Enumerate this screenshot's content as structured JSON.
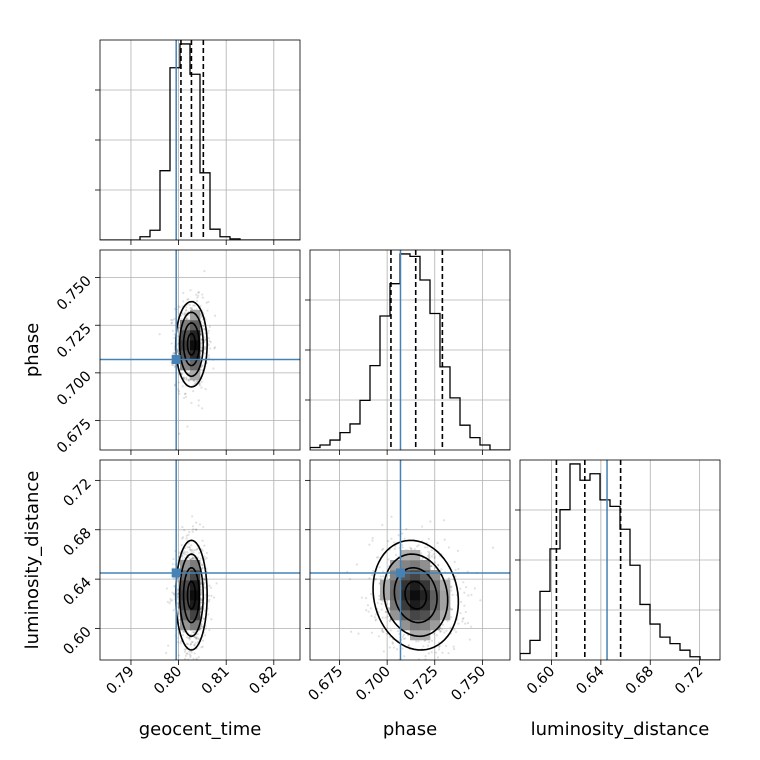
{
  "chart_data": {
    "type": "corner",
    "parameters": [
      "geocent_time",
      "phase",
      "luminosity_distance"
    ],
    "labels": {
      "geocent_time": "geocent_time",
      "phase": "phase",
      "luminosity_distance": "luminosity_distance"
    },
    "ranges": {
      "geocent_time": [
        0.7835,
        0.8255
      ],
      "phase": [
        0.6595,
        0.7645
      ],
      "luminosity_distance": [
        0.5745,
        0.7365
      ]
    },
    "ticks": {
      "geocent_time": [
        0.79,
        0.8,
        0.81,
        0.82
      ],
      "phase": [
        0.675,
        0.7,
        0.725,
        0.75
      ],
      "luminosity_distance": [
        0.6,
        0.64,
        0.68,
        0.72
      ]
    },
    "tick_labels": {
      "geocent_time": [
        "0.79",
        "0.80",
        "0.81",
        "0.82"
      ],
      "phase": [
        "0.675",
        "0.700",
        "0.725",
        "0.750"
      ],
      "luminosity_distance": [
        "0.60",
        "0.64",
        "0.68",
        "0.72"
      ]
    },
    "injected_values": {
      "geocent_time": 0.7995,
      "phase": 0.707,
      "luminosity_distance": 0.645
    },
    "quantiles": {
      "geocent_time": [
        0.8005,
        0.8027,
        0.8052
      ],
      "phase": [
        0.702,
        0.715,
        0.729
      ],
      "luminosity_distance": [
        0.604,
        0.627,
        0.656
      ]
    },
    "histograms": {
      "geocent_time": {
        "edges": [
          0.7835,
          0.7856,
          0.7877,
          0.7898,
          0.7919,
          0.794,
          0.7961,
          0.7982,
          0.8003,
          0.8024,
          0.8045,
          0.8066,
          0.8087,
          0.8108,
          0.8129,
          0.815,
          0.8171,
          0.8192,
          0.8213,
          0.8234,
          0.8255
        ],
        "counts": [
          0,
          0,
          0,
          0,
          3,
          9,
          64,
          159,
          181,
          153,
          62,
          10,
          3,
          1,
          0,
          0,
          0,
          0,
          0,
          0
        ]
      },
      "phase": {
        "edges": [
          0.6595,
          0.66475,
          0.67,
          0.67525,
          0.6805,
          0.68575,
          0.691,
          0.69625,
          0.7015,
          0.70675,
          0.712,
          0.71725,
          0.7225,
          0.72775,
          0.733,
          0.73825,
          0.7435,
          0.74875,
          0.754,
          0.75925,
          0.7645
        ],
        "counts": [
          2,
          4,
          8,
          14,
          21,
          40,
          68,
          108,
          134,
          158,
          156,
          137,
          110,
          67,
          42,
          20,
          10,
          4,
          0,
          0
        ]
      },
      "luminosity_distance": {
        "edges": [
          0.5745,
          0.5826,
          0.5907,
          0.5988,
          0.6069,
          0.615,
          0.6231,
          0.6312,
          0.6393,
          0.6474,
          0.6555,
          0.6636,
          0.6717,
          0.6798,
          0.6879,
          0.696,
          0.7041,
          0.7122,
          0.7203,
          0.7284,
          0.7365
        ],
        "counts": [
          2,
          6,
          21,
          34,
          46,
          60,
          55,
          57,
          49,
          47,
          40,
          29,
          17,
          11,
          7,
          5,
          3,
          1,
          0,
          0
        ]
      }
    },
    "pairs": [
      {
        "x": "geocent_time",
        "y": "phase",
        "mean": [
          0.8027,
          0.715
        ],
        "std": [
          0.00165,
          0.0112
        ],
        "rho": 0.0
      },
      {
        "x": "geocent_time",
        "y": "luminosity_distance",
        "mean": [
          0.8027,
          0.627
        ],
        "std": [
          0.00165,
          0.0222
        ],
        "rho": 0.0
      },
      {
        "x": "phase",
        "y": "luminosity_distance",
        "mean": [
          0.715,
          0.627
        ],
        "std": [
          0.0112,
          0.0222
        ],
        "rho": -0.12
      }
    ],
    "grid": true,
    "colors": {
      "truth": "#4682b4",
      "hist": "#000000",
      "contour": "#000000",
      "points": "#000000",
      "grid": "#b0b0b0"
    }
  }
}
